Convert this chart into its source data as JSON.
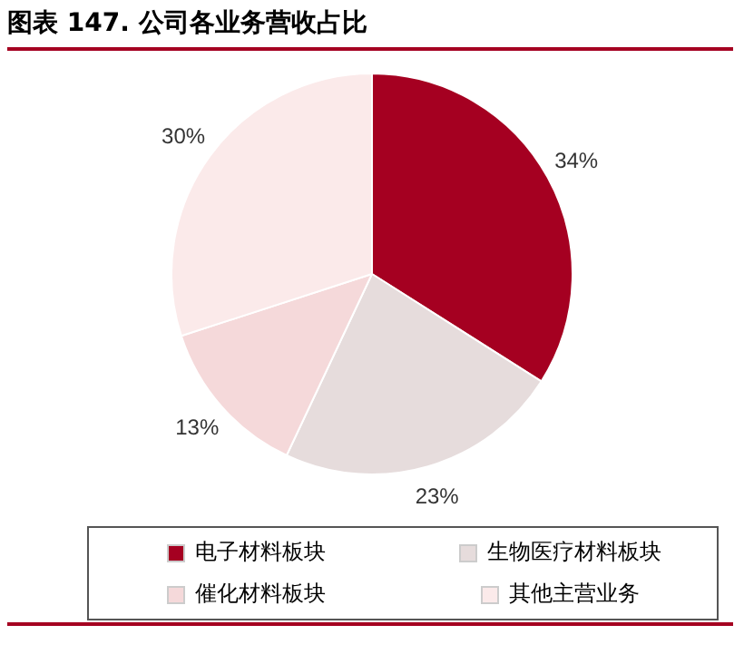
{
  "chart_data": {
    "type": "pie",
    "title": "图表 147. 公司各业务营收占比",
    "categories": [
      "电子材料板块",
      "生物医疗材料板块",
      "催化材料板块",
      "其他主营业务"
    ],
    "values": [
      34,
      23,
      13,
      30
    ],
    "value_labels": [
      "34%",
      "23%",
      "13%",
      "30%"
    ],
    "colors": [
      "#a50021",
      "#e6dcdc",
      "#f5d9da",
      "#fbeaea"
    ],
    "legend": "bottom"
  }
}
